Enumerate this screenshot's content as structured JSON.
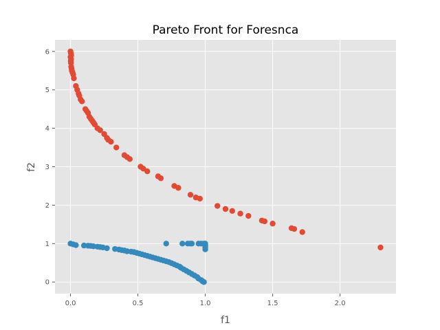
{
  "chart_data": {
    "type": "scatter",
    "title": "Pareto Front for Foresnca",
    "xlabel": "f1",
    "ylabel": "f2",
    "xlim": [
      -0.115,
      2.415
    ],
    "ylim": [
      -0.3,
      6.3
    ],
    "xticks": [
      0.0,
      0.5,
      1.0,
      1.5,
      2.0
    ],
    "xtick_labels": [
      "0.0",
      "0.5",
      "1.0",
      "1.5",
      "2.0"
    ],
    "yticks": [
      0,
      1,
      2,
      3,
      4,
      5,
      6
    ],
    "ytick_labels": [
      "0",
      "1",
      "2",
      "3",
      "4",
      "5",
      "6"
    ],
    "grid": true,
    "background": "#e5e5e5",
    "grid_color": "#ffffff",
    "series": [
      {
        "color": "#e24a33",
        "points": [
          [
            0.0,
            6.0
          ],
          [
            0.003,
            5.95
          ],
          [
            0.005,
            5.9
          ],
          [
            0.0,
            5.85
          ],
          [
            0.004,
            5.8
          ],
          [
            0.002,
            5.75
          ],
          [
            0.003,
            5.7
          ],
          [
            0.005,
            5.6
          ],
          [
            0.008,
            5.55
          ],
          [
            0.01,
            5.5
          ],
          [
            0.015,
            5.45
          ],
          [
            0.02,
            5.4
          ],
          [
            0.025,
            5.3
          ],
          [
            0.04,
            5.1
          ],
          [
            0.05,
            5.0
          ],
          [
            0.06,
            4.9
          ],
          [
            0.065,
            4.85
          ],
          [
            0.075,
            4.75
          ],
          [
            0.085,
            4.7
          ],
          [
            0.11,
            4.5
          ],
          [
            0.12,
            4.45
          ],
          [
            0.13,
            4.4
          ],
          [
            0.14,
            4.3
          ],
          [
            0.15,
            4.25
          ],
          [
            0.16,
            4.2
          ],
          [
            0.17,
            4.15
          ],
          [
            0.18,
            4.1
          ],
          [
            0.2,
            4.0
          ],
          [
            0.22,
            3.95
          ],
          [
            0.25,
            3.85
          ],
          [
            0.27,
            3.75
          ],
          [
            0.28,
            3.7
          ],
          [
            0.3,
            3.65
          ],
          [
            0.34,
            3.5
          ],
          [
            0.4,
            3.3
          ],
          [
            0.42,
            3.25
          ],
          [
            0.44,
            3.2
          ],
          [
            0.52,
            3.0
          ],
          [
            0.54,
            2.95
          ],
          [
            0.57,
            2.88
          ],
          [
            0.65,
            2.75
          ],
          [
            0.67,
            2.7
          ],
          [
            0.77,
            2.5
          ],
          [
            0.8,
            2.45
          ],
          [
            0.89,
            2.27
          ],
          [
            0.93,
            2.2
          ],
          [
            0.96,
            2.17
          ],
          [
            1.09,
            1.98
          ],
          [
            1.15,
            1.9
          ],
          [
            1.2,
            1.85
          ],
          [
            1.26,
            1.78
          ],
          [
            1.32,
            1.72
          ],
          [
            1.42,
            1.6
          ],
          [
            1.44,
            1.58
          ],
          [
            1.5,
            1.52
          ],
          [
            1.64,
            1.4
          ],
          [
            1.66,
            1.38
          ],
          [
            1.72,
            1.3
          ],
          [
            2.3,
            0.9
          ]
        ]
      },
      {
        "color": "#348abd",
        "points": [
          [
            0.0,
            1.0
          ],
          [
            0.02,
            0.98
          ],
          [
            0.04,
            0.96
          ],
          [
            0.1,
            0.95
          ],
          [
            0.13,
            0.945
          ],
          [
            0.15,
            0.94
          ],
          [
            0.17,
            0.93
          ],
          [
            0.2,
            0.92
          ],
          [
            0.22,
            0.91
          ],
          [
            0.24,
            0.9
          ],
          [
            0.27,
            0.88
          ],
          [
            0.33,
            0.86
          ],
          [
            0.36,
            0.845
          ],
          [
            0.38,
            0.83
          ],
          [
            0.4,
            0.82
          ],
          [
            0.42,
            0.8
          ],
          [
            0.45,
            0.79
          ],
          [
            0.47,
            0.78
          ],
          [
            0.49,
            0.76
          ],
          [
            0.51,
            0.74
          ],
          [
            0.53,
            0.72
          ],
          [
            0.55,
            0.7
          ],
          [
            0.57,
            0.68
          ],
          [
            0.59,
            0.66
          ],
          [
            0.61,
            0.64
          ],
          [
            0.63,
            0.62
          ],
          [
            0.65,
            0.6
          ],
          [
            0.67,
            0.58
          ],
          [
            0.69,
            0.56
          ],
          [
            0.71,
            0.54
          ],
          [
            0.73,
            0.52
          ],
          [
            0.75,
            0.49
          ],
          [
            0.77,
            0.46
          ],
          [
            0.79,
            0.43
          ],
          [
            0.81,
            0.4
          ],
          [
            0.82,
            0.37
          ],
          [
            0.84,
            0.33
          ],
          [
            0.86,
            0.29
          ],
          [
            0.88,
            0.25
          ],
          [
            0.9,
            0.21
          ],
          [
            0.92,
            0.17
          ],
          [
            0.94,
            0.13
          ],
          [
            0.95,
            0.09
          ],
          [
            0.97,
            0.05
          ],
          [
            0.98,
            0.02
          ],
          [
            0.99,
            0.0
          ],
          [
            0.71,
            1.0
          ],
          [
            0.83,
            1.0
          ],
          [
            0.87,
            1.0
          ],
          [
            0.89,
            1.0
          ],
          [
            0.9,
            1.0
          ],
          [
            0.95,
            1.0
          ],
          [
            0.97,
            1.0
          ],
          [
            0.99,
            1.0
          ],
          [
            1.0,
            1.0
          ],
          [
            1.0,
            0.95
          ],
          [
            1.0,
            0.9
          ],
          [
            1.0,
            0.85
          ]
        ]
      }
    ]
  }
}
